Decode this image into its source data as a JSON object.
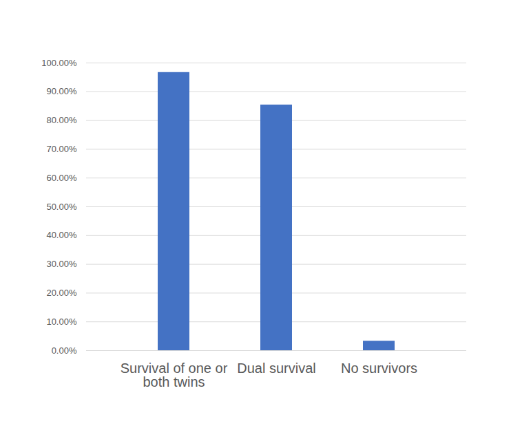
{
  "chart_data": {
    "type": "bar",
    "categories": [
      "Survival of one or both twins",
      "Dual survival",
      "No survivors"
    ],
    "values": [
      96.7,
      85.4,
      3.3
    ],
    "color": "#4472c4",
    "ylim": [
      0,
      100
    ],
    "yticks": [
      {
        "value": 0,
        "label": "0.00%"
      },
      {
        "value": 10,
        "label": "10.00%"
      },
      {
        "value": 20,
        "label": "20.00%"
      },
      {
        "value": 30,
        "label": "30.00%"
      },
      {
        "value": 40,
        "label": "40.00%"
      },
      {
        "value": 50,
        "label": "50.00%"
      },
      {
        "value": 60,
        "label": "60.00%"
      },
      {
        "value": 70,
        "label": "70.00%"
      },
      {
        "value": 80,
        "label": "80.00%"
      },
      {
        "value": 90,
        "label": "90.00%"
      },
      {
        "value": 100,
        "label": "100.00%"
      }
    ],
    "grid": true
  }
}
